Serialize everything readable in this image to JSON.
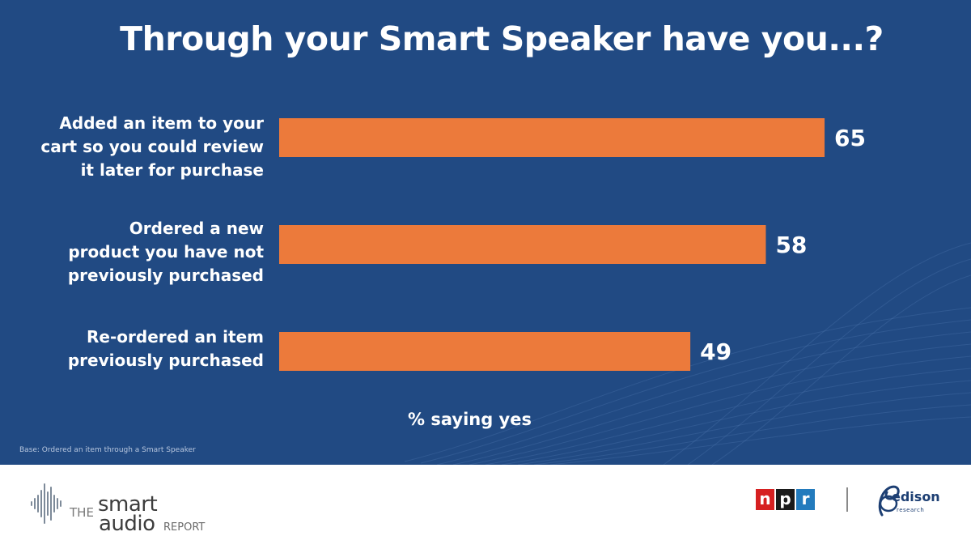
{
  "chart_data": {
    "type": "bar",
    "orientation": "horizontal",
    "title": "Through your Smart Speaker have you...?",
    "categories": [
      "Added an item to your cart so you could review it later for purchase",
      "Ordered a new product you have not previously purchased",
      "Re-ordered an item previously purchased"
    ],
    "category_lines": [
      [
        "Added an item to your",
        "cart so you could review",
        "it later for purchase"
      ],
      [
        "Ordered a new",
        "product you have not",
        "previously purchased"
      ],
      [
        "Re-ordered an item",
        "previously purchased"
      ]
    ],
    "values": [
      65,
      58,
      49
    ],
    "data_labels": [
      "65",
      "58",
      "49"
    ],
    "xlabel": "% saying yes",
    "xlim": [
      0,
      100
    ],
    "grid": false,
    "legend": "none",
    "bar_color": "#ec7a3b"
  },
  "note": "Base: Ordered an item through a Smart Speaker",
  "footer": {
    "brand_the": "THE",
    "brand_smart": "smart",
    "brand_audio": "audio",
    "brand_report": "REPORT",
    "npr_letters": [
      "n",
      "p",
      "r"
    ],
    "npr_colors": [
      "#d62021",
      "#1a1a1a",
      "#237bbd"
    ],
    "edison_name": "edison",
    "edison_sub": "research"
  },
  "colors": {
    "background": "#214a83",
    "bar": "#ec7a3b",
    "text": "#ffffff",
    "footer_bg": "#ffffff"
  },
  "icons": {
    "brand_waveform": "waveform-icon",
    "edison_mark": "edison-swirl-icon"
  }
}
